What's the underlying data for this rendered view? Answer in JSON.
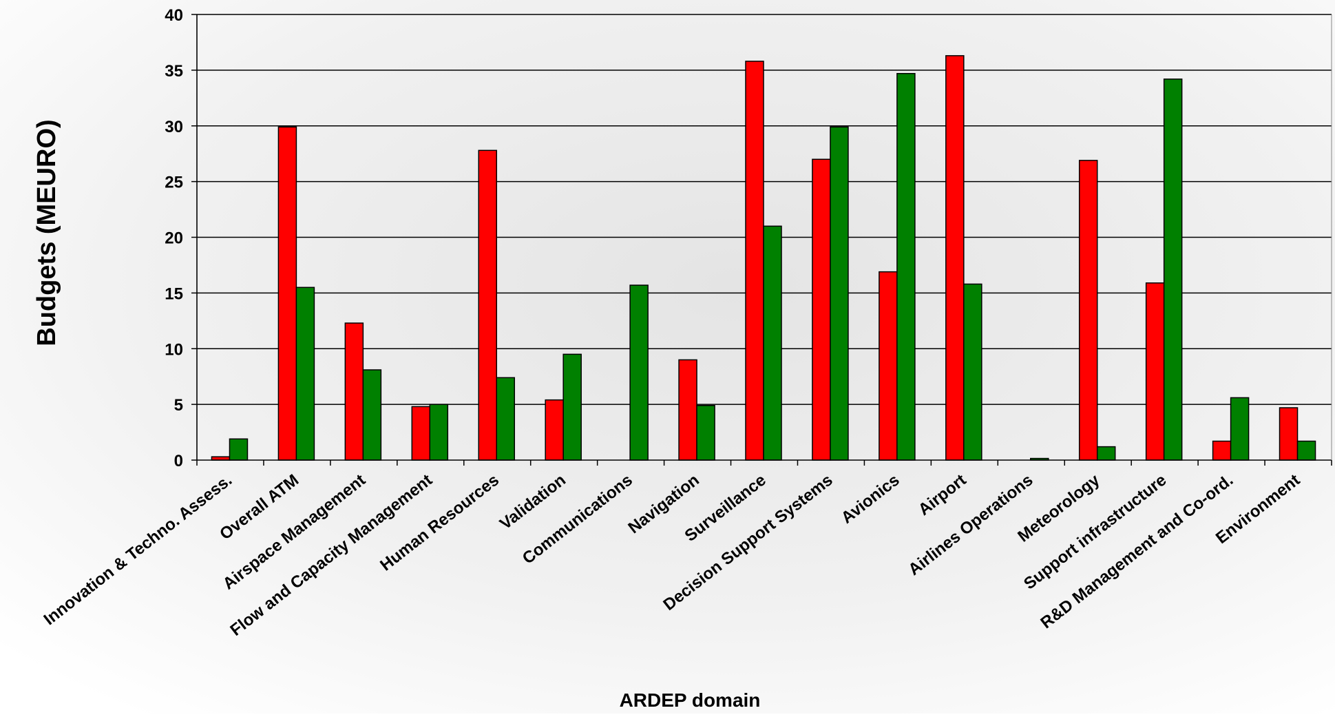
{
  "chart_data": {
    "type": "bar",
    "title": "",
    "xlabel": "ARDEP domain",
    "ylabel": "Budgets (MEURO)",
    "ylim": [
      0,
      40
    ],
    "yticks": [
      0,
      5,
      10,
      15,
      20,
      25,
      30,
      35,
      40
    ],
    "grid": true,
    "legend": "none",
    "categories": [
      "Innovation & Techno. Assess.",
      "Overall ATM",
      "Airspace Management",
      "Flow and Capacity Management",
      "Human Resources",
      "Validation",
      "Communications",
      "Navigation",
      "Surveillance",
      "Decision Support Systems",
      "Avionics",
      "Airport",
      "Airlines Operations",
      "Meteorology",
      "Support infrastructure",
      "R&D Management and Co-ord.",
      "Environment"
    ],
    "series": [
      {
        "color": "#ff0000",
        "values": [
          0.3,
          29.9,
          12.3,
          4.8,
          27.8,
          5.4,
          0,
          9.0,
          35.8,
          27.0,
          16.9,
          36.3,
          0,
          26.9,
          15.9,
          1.7,
          4.7
        ]
      },
      {
        "color": "#008000",
        "values": [
          1.9,
          15.5,
          8.1,
          5.0,
          7.4,
          9.5,
          15.7,
          4.9,
          21.0,
          29.9,
          34.7,
          15.8,
          0.15,
          1.2,
          34.2,
          5.6,
          1.7
        ]
      }
    ]
  }
}
